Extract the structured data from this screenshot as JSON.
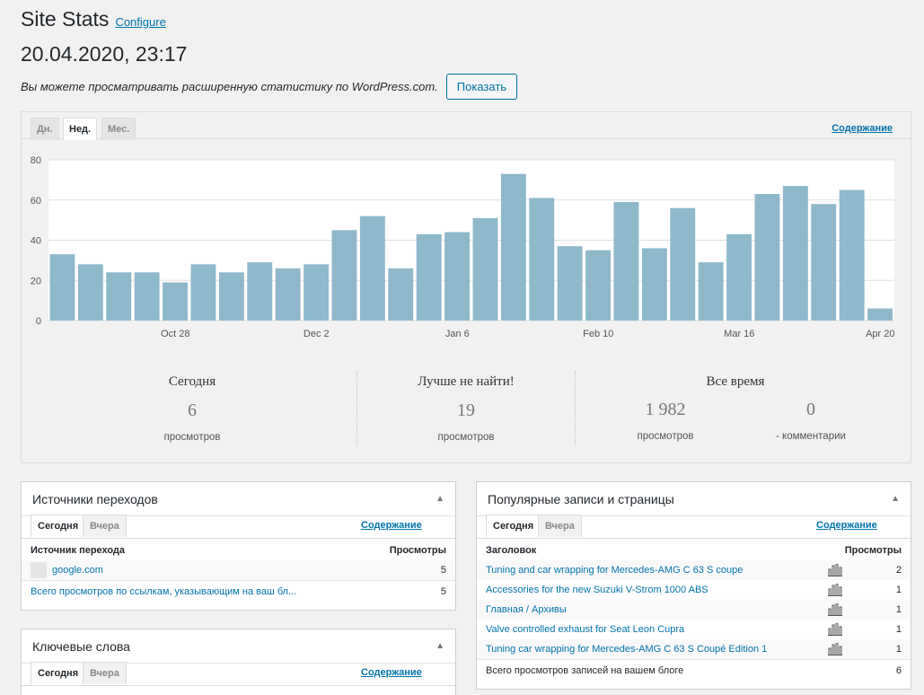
{
  "header": {
    "title": "Site Stats",
    "configure": "Configure",
    "datetime": "20.04.2020, 23:17",
    "info": "Вы можете просматривать расширенную статистику по WordPress.com.",
    "show_button": "Показать"
  },
  "stats_tabs": [
    "Дн.",
    "Нед.",
    "Мес."
  ],
  "contents_link": "Содержание",
  "chart_data": {
    "type": "bar",
    "ylim": [
      0,
      80
    ],
    "yticks": [
      "0",
      "20",
      "40",
      "60",
      "80"
    ],
    "xtick_labels": [
      "Oct 28",
      "Dec 2",
      "Jan 6",
      "Feb 10",
      "Mar 16",
      "Apr 20"
    ],
    "values": [
      33,
      28,
      24,
      24,
      19,
      28,
      24,
      29,
      26,
      28,
      45,
      52,
      26,
      43,
      44,
      51,
      73,
      61,
      37,
      35,
      59,
      36,
      56,
      29,
      43,
      63,
      67,
      58,
      65,
      6
    ],
    "bar_color": "#8fb8cb",
    "grid": true
  },
  "summary": {
    "today": {
      "head": "Сегодня",
      "value": "6",
      "sub": "просмотров"
    },
    "best": {
      "head": "Лучше не найти!",
      "value": "19",
      "sub": "просмотров"
    },
    "alltime": {
      "head": "Все время",
      "views": "1 982",
      "views_sub": "просмотров",
      "comments": "0",
      "comments_sub": "- комментарии"
    }
  },
  "referrers": {
    "title": "Источники переходов",
    "tabs": [
      "Сегодня",
      "Вчера"
    ],
    "contents": "Содержание",
    "col1": "Источник перехода",
    "col2": "Просмотры",
    "rows": [
      {
        "name": "google.com",
        "views": "5"
      }
    ],
    "total_label": "Всего просмотров по ссылкам, указывающим на ваш бл...",
    "total_value": "5"
  },
  "keywords": {
    "title": "Ключевые слова",
    "tabs": [
      "Сегодня",
      "Вчера"
    ],
    "contents": "Содержание"
  },
  "popular": {
    "title": "Популярные записи и страницы",
    "tabs": [
      "Сегодня",
      "Вчера"
    ],
    "contents": "Содержание",
    "col1": "Заголовок",
    "col2": "Просмотры",
    "rows": [
      {
        "name": "Tuning and car wrapping for Mercedes-AMG C 63 S coupe",
        "views": "2"
      },
      {
        "name": "Accessories for the new Suzuki V-Strom 1000 ABS",
        "views": "1"
      },
      {
        "name": "Главная / Архивы",
        "views": "1"
      },
      {
        "name": "Valve controlled exhaust for Seat Leon Cupra",
        "views": "1"
      },
      {
        "name": "Tuning car wrapping for Mercedes-AMG C 63 S Coupé Edition 1",
        "views": "1"
      }
    ],
    "total_label": "Всего просмотров записей на вашем блоге",
    "total_value": "6"
  }
}
